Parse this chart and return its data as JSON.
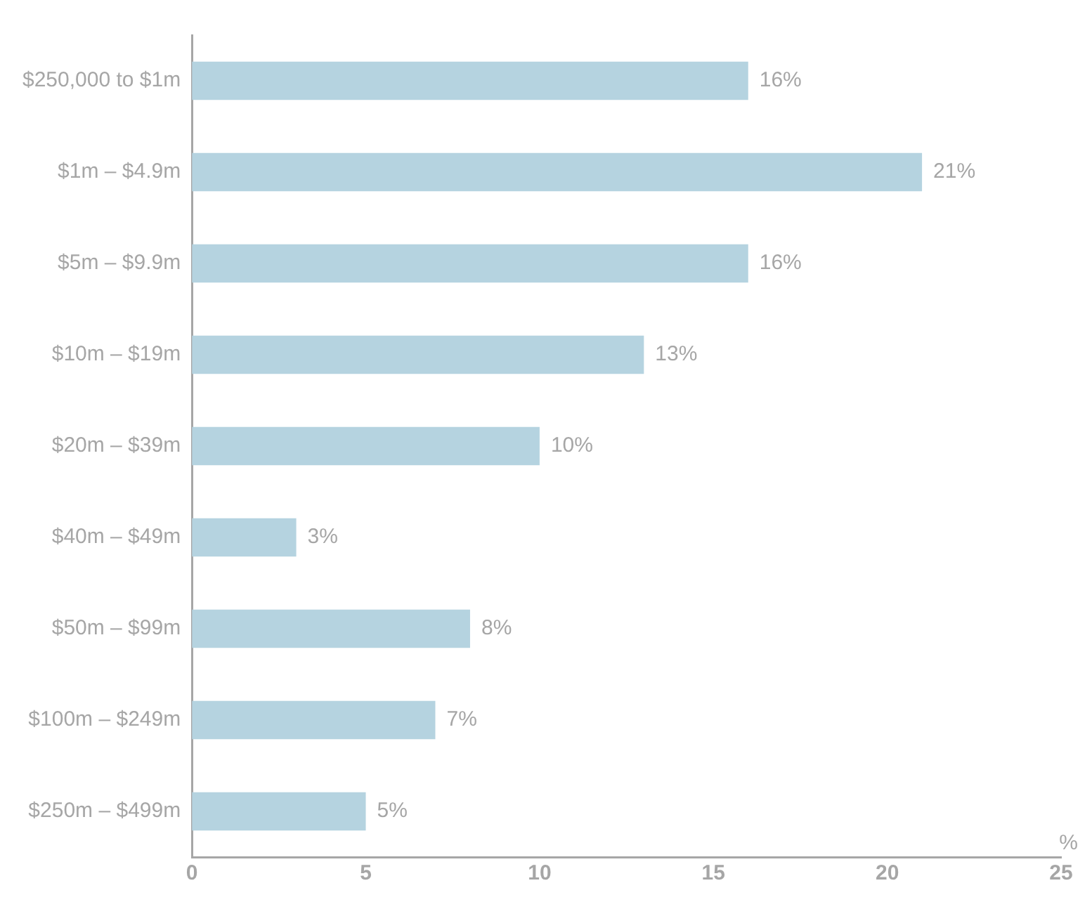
{
  "chart_data": {
    "type": "bar",
    "orientation": "horizontal",
    "xlabel": "%",
    "categories": [
      "$250,000 to $1m",
      "$1m – $4.9m",
      "$5m – $9.9m",
      "$10m – $19m",
      "$20m – $39m",
      "$40m – $49m",
      "$50m – $99m",
      "$100m – $249m",
      "$250m – $499m"
    ],
    "values": [
      16,
      21,
      16,
      13,
      10,
      3,
      8,
      7,
      5
    ],
    "value_labels": [
      "16%",
      "21%",
      "16%",
      "13%",
      "10%",
      "3%",
      "8%",
      "7%",
      "5%"
    ],
    "color": "#b5d3e0",
    "xlim": [
      0,
      25
    ],
    "xticks": [
      0,
      5,
      10,
      15,
      20,
      25
    ],
    "grid": false
  }
}
